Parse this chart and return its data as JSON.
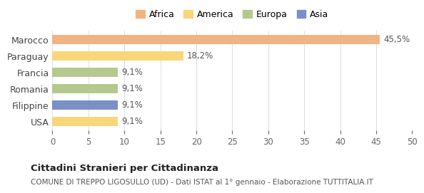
{
  "categories": [
    "Marocco",
    "Paraguay",
    "Francia",
    "Romania",
    "Filippine",
    "USA"
  ],
  "values": [
    45.5,
    18.2,
    9.1,
    9.1,
    9.1,
    9.1
  ],
  "labels": [
    "45,5%",
    "18,2%",
    "9,1%",
    "9,1%",
    "9,1%",
    "9,1%"
  ],
  "colors": [
    "#F0B482",
    "#F9D67A",
    "#B5C98E",
    "#B5C98E",
    "#7B8FC7",
    "#F9D67A"
  ],
  "legend_items": [
    {
      "label": "Africa",
      "color": "#F0B482"
    },
    {
      "label": "America",
      "color": "#F9D67A"
    },
    {
      "label": "Europa",
      "color": "#B5C98E"
    },
    {
      "label": "Asia",
      "color": "#7B8FC7"
    }
  ],
  "xlim": [
    0,
    50
  ],
  "xticks": [
    0,
    5,
    10,
    15,
    20,
    25,
    30,
    35,
    40,
    45,
    50
  ],
  "title": "Cittadini Stranieri per Cittadinanza",
  "subtitle": "COMUNE DI TREPPO LIGOSULLO (UD) - Dati ISTAT al 1° gennaio - Elaborazione TUTTITALIA.IT",
  "background_color": "#ffffff",
  "bar_height": 0.55
}
